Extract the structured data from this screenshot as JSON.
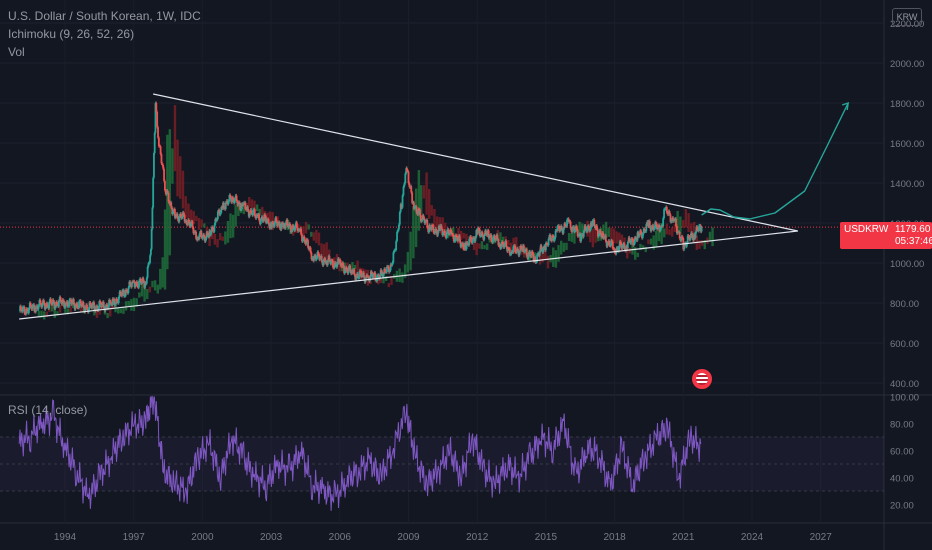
{
  "legend": {
    "title": "U.S. Dollar / South Korean, 1W, IDC",
    "ichimoku": "Ichimoku (9, 26, 52, 26)",
    "vol": "Vol",
    "rsi": "RSI (14, close)"
  },
  "currency_badge": "KRW",
  "price_tag": {
    "symbol": "USDKRW",
    "price": "1179.60",
    "countdown": "05:37:46"
  },
  "colors": {
    "background": "#131722",
    "candle_up": "#26a69a",
    "candle_down": "#ef5350",
    "cloud_bull": "#1f6f3a",
    "cloud_bear": "#7a1f24",
    "rsi_line": "#7e57c2",
    "trendline": "#e0e3eb",
    "projection": "#26a69a",
    "price_line": "#f23645"
  },
  "chart_data": [
    {
      "type": "line",
      "title": "U.S. Dollar / South Korean, 1W, IDC",
      "x": [
        1992.0,
        1993.0,
        1994.0,
        1995.0,
        1996.0,
        1997.0,
        1997.5,
        1997.75,
        1997.85,
        1997.95,
        1998.1,
        1998.4,
        1998.8,
        1999.3,
        1999.8,
        2000.3,
        2000.9,
        2001.3,
        2001.8,
        2002.4,
        2003.0,
        2003.6,
        2004.2,
        2004.8,
        2005.4,
        2006.0,
        2006.6,
        2007.2,
        2007.9,
        2008.3,
        2008.7,
        2008.9,
        2009.0,
        2009.2,
        2009.5,
        2009.9,
        2010.4,
        2010.9,
        2011.5,
        2012.0,
        2012.5,
        2013.0,
        2013.5,
        2014.0,
        2014.5,
        2015.0,
        2015.5,
        2016.0,
        2016.5,
        2017.0,
        2017.5,
        2018.0,
        2018.5,
        2019.0,
        2019.5,
        2020.0,
        2020.2,
        2020.6,
        2021.0,
        2021.5,
        2021.8
      ],
      "y": [
        758,
        790,
        805,
        780,
        790,
        900,
        900,
        1050,
        1400,
        1800,
        1600,
        1350,
        1240,
        1220,
        1130,
        1140,
        1290,
        1320,
        1280,
        1230,
        1200,
        1190,
        1170,
        1040,
        1010,
        990,
        945,
        930,
        940,
        1000,
        1300,
        1500,
        1400,
        1300,
        1240,
        1170,
        1160,
        1140,
        1080,
        1150,
        1140,
        1100,
        1060,
        1070,
        1020,
        1090,
        1160,
        1200,
        1130,
        1200,
        1130,
        1070,
        1090,
        1130,
        1190,
        1170,
        1260,
        1210,
        1090,
        1150,
        1179.6
      ],
      "ylim": [
        380,
        2250
      ],
      "xlim": [
        1992,
        2030
      ],
      "ytick_labels": [
        "400.00",
        "600.00",
        "800.00",
        "1000.00",
        "1200.00",
        "1400.00",
        "1600.00",
        "1800.00",
        "2000.00",
        "2200.00"
      ],
      "xtick_labels": [
        "1994",
        "1997",
        "2000",
        "2003",
        "2006",
        "2009",
        "2012",
        "2015",
        "2018",
        "2021",
        "2024",
        "2027"
      ],
      "annotations": {
        "upper_trendline": {
          "x": [
            1997.85,
            2026.0
          ],
          "y": [
            1845,
            1160
          ]
        },
        "lower_trendline": {
          "x": [
            1992.0,
            2026.0
          ],
          "y": [
            720,
            1160
          ]
        },
        "projection": {
          "x": [
            2021.8,
            2022.2,
            2022.6,
            2023.2,
            2023.9,
            2025.0,
            2026.3,
            2027.3,
            2028.2
          ],
          "y": [
            1240,
            1270,
            1265,
            1230,
            1220,
            1250,
            1360,
            1590,
            1800
          ]
        }
      }
    },
    {
      "type": "line",
      "title": "RSI (14, close)",
      "x": [
        1992.0,
        1992.5,
        1993.0,
        1993.5,
        1994.0,
        1994.5,
        1995.0,
        1995.5,
        1996.0,
        1996.5,
        1997.0,
        1997.5,
        1997.9,
        1998.3,
        1998.8,
        1999.3,
        1999.8,
        2000.3,
        2000.8,
        2001.3,
        2001.8,
        2002.3,
        2002.8,
        2003.3,
        2003.8,
        2004.3,
        2004.8,
        2005.3,
        2005.8,
        2006.3,
        2006.8,
        2007.3,
        2007.8,
        2008.3,
        2008.9,
        2009.3,
        2009.8,
        2010.3,
        2010.8,
        2011.3,
        2011.8,
        2012.3,
        2012.8,
        2013.3,
        2013.8,
        2014.3,
        2014.8,
        2015.3,
        2015.8,
        2016.3,
        2016.8,
        2017.3,
        2017.8,
        2018.3,
        2018.8,
        2019.3,
        2019.8,
        2020.3,
        2020.8,
        2021.3,
        2021.8
      ],
      "y": [
        65,
        72,
        80,
        85,
        62,
        45,
        25,
        40,
        55,
        70,
        78,
        82,
        100,
        45,
        35,
        30,
        55,
        65,
        40,
        70,
        55,
        40,
        35,
        50,
        45,
        60,
        35,
        30,
        25,
        38,
        45,
        52,
        40,
        60,
        90,
        55,
        35,
        45,
        60,
        40,
        70,
        45,
        35,
        50,
        40,
        55,
        70,
        62,
        80,
        40,
        62,
        58,
        32,
        62,
        35,
        55,
        68,
        78,
        40,
        70,
        62
      ],
      "ylim": [
        12,
        104
      ],
      "ytick_labels": [
        "20.00",
        "40.00",
        "60.00",
        "80.00",
        "100.00"
      ],
      "bands": [
        30,
        50,
        70
      ]
    }
  ]
}
